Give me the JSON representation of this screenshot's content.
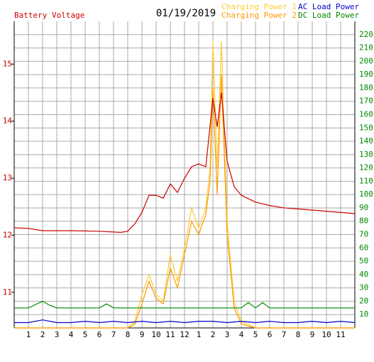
{
  "chart_data": {
    "type": "line",
    "title": "01/19/2019",
    "ylabel": "Battery Voltage",
    "xlim": [
      0,
      24
    ],
    "xticks": [
      1,
      2,
      3,
      4,
      5,
      6,
      7,
      8,
      9,
      10,
      11,
      12,
      {
        "value": 13,
        "label": "1"
      },
      {
        "value": 14,
        "label": "2"
      },
      {
        "value": 15,
        "label": "3"
      },
      {
        "value": 16,
        "label": "4"
      },
      {
        "value": 17,
        "label": "5"
      },
      {
        "value": 18,
        "label": "6"
      },
      {
        "value": 19,
        "label": "7"
      },
      {
        "value": 20,
        "label": "8"
      },
      {
        "value": 21,
        "label": "9"
      },
      {
        "value": 22,
        "label": "10"
      },
      {
        "value": 23,
        "label": "11"
      }
    ],
    "ylim": [
      10.375,
      15.75
    ],
    "yticks": [
      11,
      12,
      13,
      14,
      15
    ],
    "y2lim": [
      0,
      230
    ],
    "y2ticks": [
      10,
      20,
      30,
      40,
      50,
      60,
      70,
      80,
      90,
      100,
      110,
      120,
      130,
      140,
      150,
      160,
      170,
      180,
      190,
      200,
      210,
      220
    ],
    "grid": true,
    "series": [
      {
        "name": "Charging Power 1",
        "color": "#ffcc33",
        "axis": "y2",
        "x": [
          0,
          8,
          8.5,
          9,
          9.5,
          10,
          10.5,
          11,
          11.5,
          12,
          12.5,
          13,
          13.5,
          13.8,
          14,
          14.3,
          14.6,
          15,
          15.5,
          16,
          17,
          24
        ],
        "values": [
          0,
          0,
          5,
          25,
          40,
          25,
          20,
          55,
          35,
          60,
          90,
          75,
          90,
          120,
          215,
          120,
          215,
          80,
          20,
          5,
          0,
          0
        ]
      },
      {
        "name": "Charging Power 2",
        "color": "#ff9900",
        "axis": "y2",
        "x": [
          0,
          8,
          8.5,
          9,
          9.5,
          10,
          10.5,
          11,
          11.5,
          12,
          12.5,
          13,
          13.5,
          13.8,
          14,
          14.3,
          14.6,
          15,
          15.5,
          16,
          17,
          24
        ],
        "values": [
          0,
          0,
          3,
          18,
          35,
          22,
          18,
          45,
          30,
          55,
          80,
          70,
          85,
          110,
          180,
          100,
          190,
          70,
          15,
          3,
          0,
          0
        ]
      },
      {
        "name": "AC Load Power",
        "color": "#0000cc",
        "axis": "y2",
        "x": [
          0,
          1,
          2,
          3,
          4,
          5,
          6,
          7,
          8,
          9,
          10,
          11,
          12,
          13,
          14,
          15,
          16,
          17,
          18,
          19,
          20,
          21,
          22,
          23,
          24
        ],
        "values": [
          4,
          4,
          6,
          4,
          4,
          5,
          4,
          5,
          4,
          5,
          4,
          5,
          4,
          5,
          5,
          4,
          5,
          4,
          5,
          4,
          4,
          5,
          4,
          5,
          4
        ]
      },
      {
        "name": "DC Load Power",
        "color": "#008800",
        "axis": "y2",
        "x": [
          0,
          1,
          2,
          2.5,
          3,
          4,
          5,
          6,
          6.5,
          7,
          8,
          9,
          10,
          11,
          12,
          13,
          14,
          15,
          16,
          16.5,
          17,
          17.5,
          18,
          19,
          20,
          21,
          22,
          23,
          24
        ],
        "values": [
          15,
          15,
          20,
          17,
          15,
          15,
          15,
          15,
          18,
          15,
          15,
          15,
          15,
          15,
          15,
          15,
          15,
          15,
          15,
          19,
          15,
          19,
          15,
          15,
          15,
          15,
          15,
          15,
          15
        ]
      },
      {
        "name": "Battery Voltage",
        "color": "#cc0000",
        "axis": "y",
        "x": [
          0,
          1,
          2,
          4,
          6,
          7.5,
          8,
          8.5,
          9,
          9.5,
          10,
          10.5,
          11,
          11.5,
          12,
          12.5,
          13,
          13.5,
          14,
          14.3,
          14.6,
          15,
          15.5,
          16,
          17,
          18,
          19,
          20,
          22,
          24
        ],
        "values": [
          12.13,
          12.12,
          12.08,
          12.08,
          12.07,
          12.05,
          12.07,
          12.2,
          12.4,
          12.7,
          12.7,
          12.65,
          12.9,
          12.75,
          13.0,
          13.2,
          13.25,
          13.2,
          14.4,
          13.9,
          14.5,
          13.3,
          12.85,
          12.7,
          12.58,
          12.52,
          12.48,
          12.46,
          12.42,
          12.38
        ]
      }
    ]
  }
}
